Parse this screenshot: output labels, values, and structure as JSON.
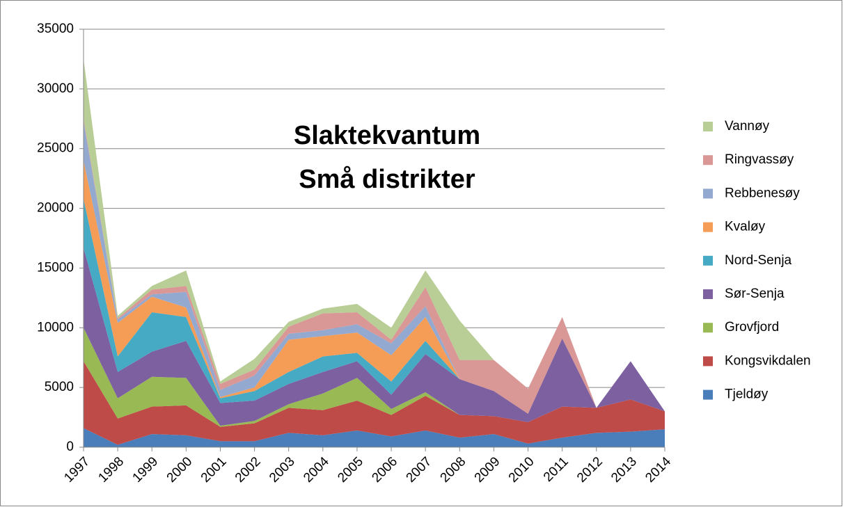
{
  "chart_data": {
    "type": "stacked-area",
    "title": "Slaktekvantum",
    "subtitle": "Små distrikter",
    "categories": [
      "1997",
      "1998",
      "1999",
      "2000",
      "2001",
      "2002",
      "2003",
      "2004",
      "2005",
      "2006",
      "2007",
      "2008",
      "2009",
      "2010",
      "2011",
      "2012",
      "2013",
      "2014"
    ],
    "series": [
      {
        "name": "Tjeldøy",
        "color": "#4a7ebb",
        "values": [
          1600,
          200,
          1100,
          1000,
          500,
          500,
          1200,
          1000,
          1400,
          900,
          1400,
          800,
          1100,
          300,
          800,
          1200,
          1300,
          1500
        ]
      },
      {
        "name": "Kongsvikdalen",
        "color": "#be4b48",
        "values": [
          5600,
          2200,
          2300,
          2500,
          1200,
          1500,
          2100,
          2100,
          2500,
          1800,
          2900,
          1900,
          1500,
          1800,
          2600,
          2100,
          2700,
          1500
        ]
      },
      {
        "name": "Grovfjord",
        "color": "#98b954",
        "values": [
          2800,
          1700,
          2500,
          2300,
          100,
          200,
          300,
          1400,
          1900,
          500,
          300,
          0,
          0,
          0,
          0,
          0,
          0,
          0
        ]
      },
      {
        "name": "Sør-Senja",
        "color": "#7d60a0",
        "values": [
          6700,
          2200,
          2100,
          3100,
          1900,
          1700,
          1700,
          1800,
          1400,
          1200,
          3200,
          3000,
          2100,
          700,
          5700,
          0,
          3200,
          0
        ]
      },
      {
        "name": "Nord-Senja",
        "color": "#46aac5",
        "values": [
          4100,
          1300,
          3300,
          2000,
          400,
          800,
          1000,
          1300,
          700,
          1100,
          1100,
          0,
          0,
          0,
          0,
          0,
          0,
          0
        ]
      },
      {
        "name": "Kvaløy",
        "color": "#f59d56",
        "values": [
          3200,
          2800,
          1300,
          800,
          100,
          300,
          2700,
          1700,
          1700,
          2200,
          2000,
          0,
          0,
          0,
          0,
          0,
          0,
          0
        ]
      },
      {
        "name": "Rebbenesøy",
        "color": "#93a9d0",
        "values": [
          3300,
          300,
          200,
          1300,
          600,
          1000,
          500,
          500,
          700,
          1000,
          900,
          0,
          0,
          0,
          0,
          0,
          0,
          0
        ]
      },
      {
        "name": "Ringvassøy",
        "color": "#d99795",
        "values": [
          200,
          100,
          400,
          500,
          500,
          500,
          600,
          1400,
          1000,
          300,
          1600,
          1600,
          2600,
          2100,
          1800,
          0,
          0,
          0
        ]
      },
      {
        "name": "Vannøy",
        "color": "#b9cd96",
        "values": [
          5000,
          200,
          300,
          1300,
          200,
          900,
          400,
          400,
          700,
          1000,
          1400,
          3300,
          0,
          0,
          0,
          0,
          0,
          0
        ]
      }
    ],
    "ylim": [
      0,
      35000
    ],
    "yticks": [
      0,
      5000,
      10000,
      15000,
      20000,
      25000,
      30000,
      35000
    ],
    "grid": true,
    "legend": "right"
  }
}
